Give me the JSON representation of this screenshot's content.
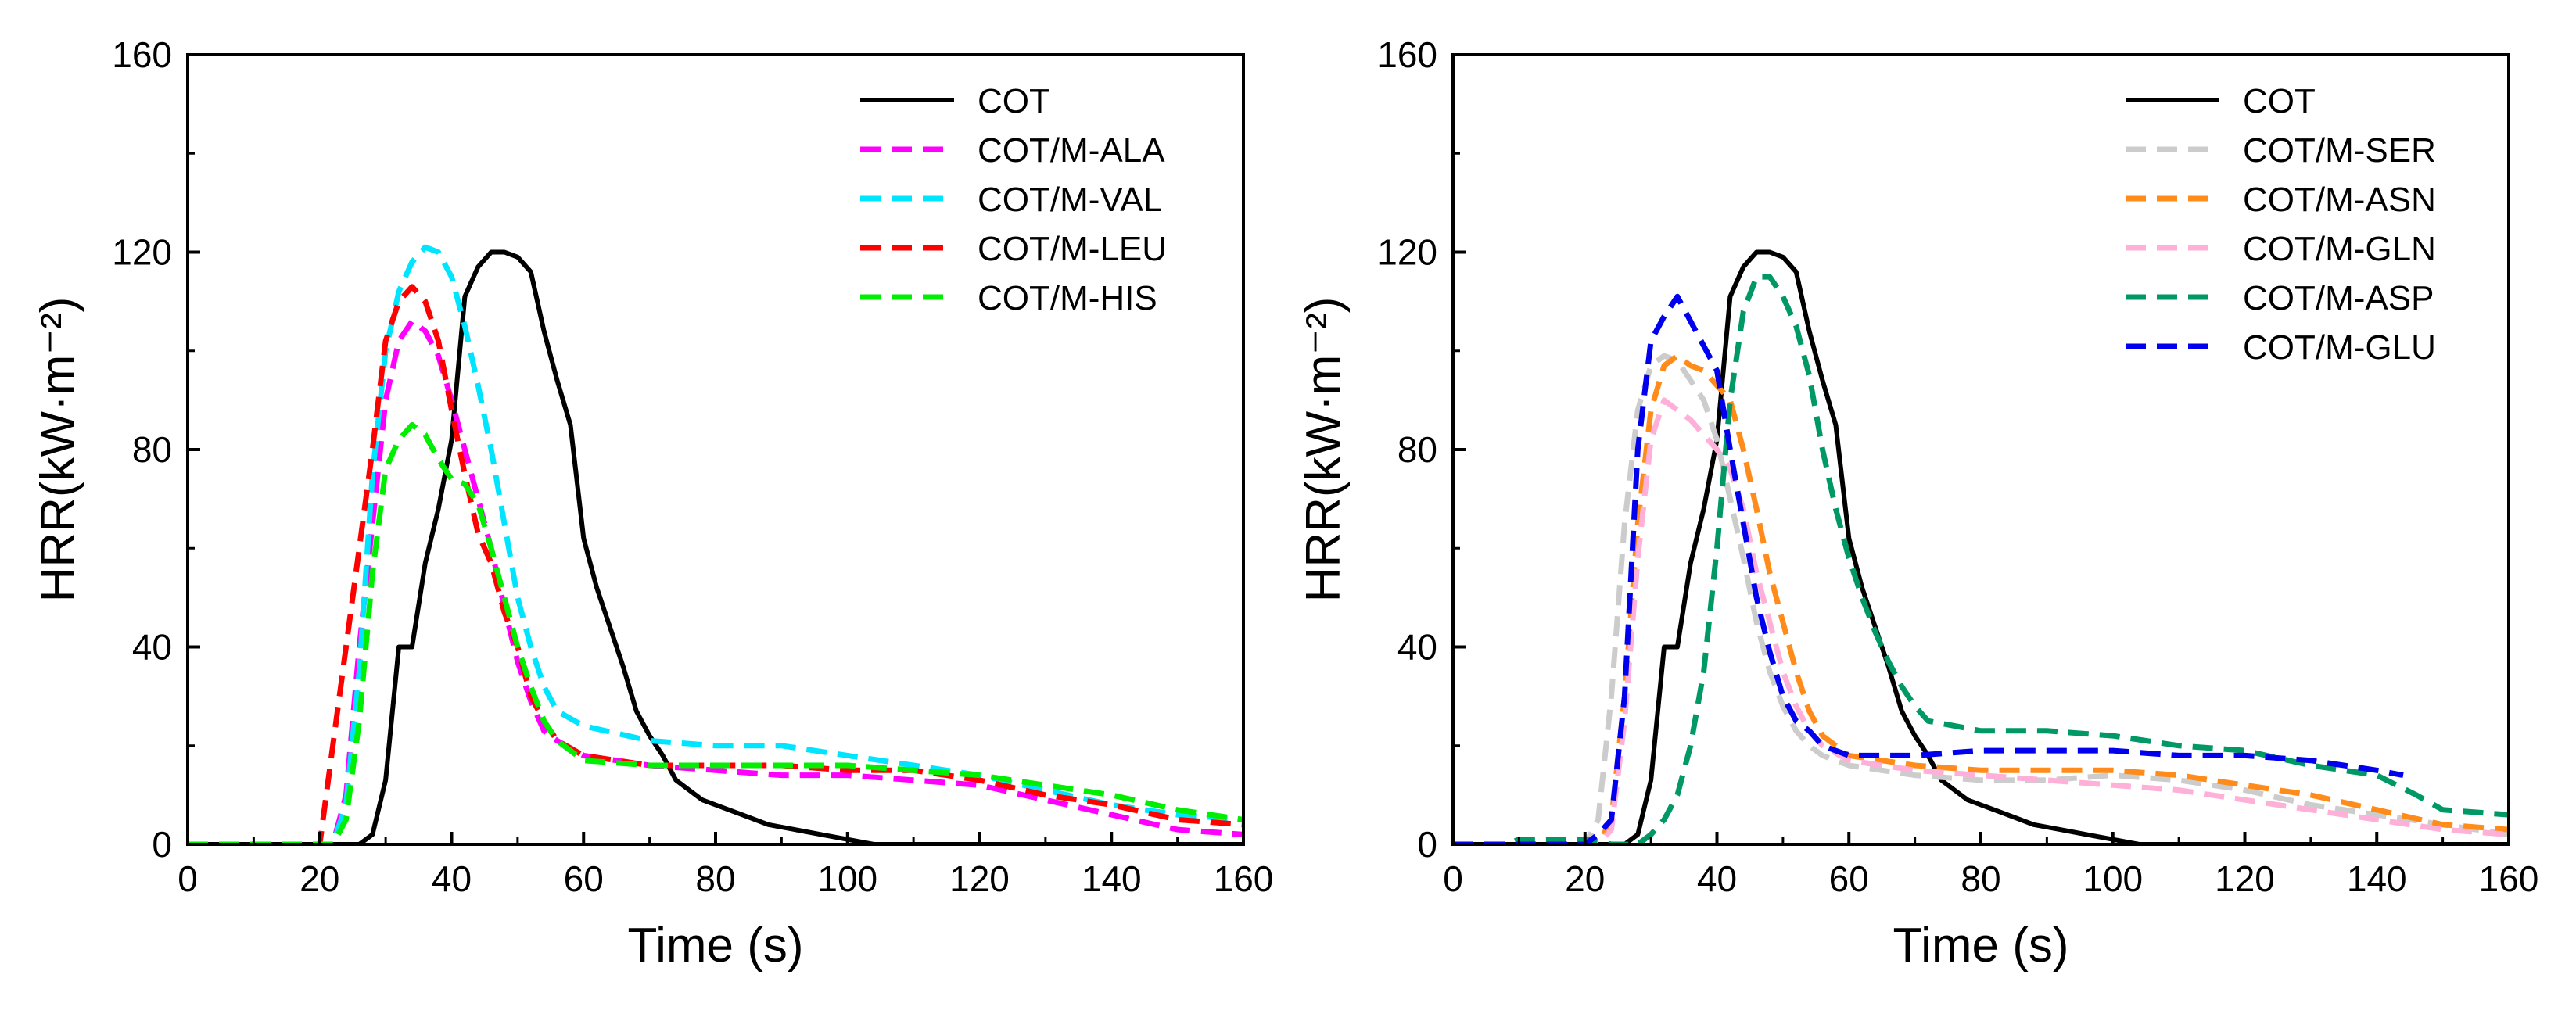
{
  "chart_data": [
    {
      "type": "line",
      "xlabel": "Time (s)",
      "ylabel": "HRR(kW·m⁻²)",
      "xlim": [
        0,
        160
      ],
      "ylim": [
        0,
        160
      ],
      "xticks": [
        "0",
        "20",
        "40",
        "60",
        "80",
        "100",
        "120",
        "140",
        "160"
      ],
      "yticks": [
        "0",
        "40",
        "80",
        "120",
        "160"
      ],
      "legend_position": "top-right",
      "series": [
        {
          "name": "COT",
          "color": "#000000",
          "dash": "solid",
          "x": [
            0,
            26,
            28,
            30,
            32,
            34,
            36,
            38,
            40,
            42,
            44,
            46,
            48,
            50,
            52,
            54,
            56,
            58,
            60,
            62,
            64,
            66,
            68,
            70,
            72,
            74,
            76,
            78,
            80,
            84,
            88,
            92,
            96,
            100,
            104,
            160
          ],
          "y": [
            0,
            0,
            2,
            13,
            40,
            40,
            57,
            68,
            82,
            111,
            117,
            120,
            120,
            119,
            116,
            104,
            94,
            85,
            62,
            52,
            44,
            36,
            27,
            22,
            18,
            13,
            11,
            9,
            8,
            6,
            4,
            3,
            2,
            1,
            0,
            0
          ]
        },
        {
          "name": "COT/M-ALA",
          "color": "#ff00ff",
          "dash": "dashed",
          "x": [
            0,
            22,
            24,
            26,
            28,
            30,
            32,
            34,
            36,
            38,
            40,
            42,
            44,
            46,
            48,
            50,
            52,
            54,
            56,
            60,
            70,
            80,
            90,
            100,
            110,
            120,
            130,
            140,
            150,
            160
          ],
          "y": [
            0,
            0,
            10,
            40,
            65,
            90,
            102,
            106,
            104,
            99,
            90,
            80,
            70,
            60,
            48,
            37,
            29,
            23,
            21,
            18,
            16,
            15,
            14,
            14,
            13,
            12,
            9,
            6,
            3,
            2
          ]
        },
        {
          "name": "COT/M-VAL",
          "color": "#00e5ff",
          "dash": "dashed",
          "x": [
            0,
            22,
            24,
            26,
            28,
            30,
            32,
            34,
            36,
            38,
            40,
            42,
            44,
            46,
            48,
            50,
            52,
            54,
            56,
            60,
            70,
            80,
            90,
            100,
            110,
            120,
            130,
            140,
            150,
            160
          ],
          "y": [
            0,
            0,
            8,
            35,
            75,
            100,
            112,
            118,
            121,
            120,
            115,
            105,
            93,
            80,
            65,
            50,
            40,
            32,
            27,
            24,
            21,
            20,
            20,
            18,
            16,
            14,
            11,
            8,
            6,
            5
          ]
        },
        {
          "name": "COT/M-LEU",
          "color": "#ff0000",
          "dash": "dashed",
          "x": [
            0,
            20,
            22,
            24,
            26,
            28,
            30,
            32,
            34,
            36,
            38,
            40,
            42,
            44,
            46,
            48,
            50,
            52,
            54,
            56,
            60,
            70,
            80,
            90,
            100,
            110,
            120,
            130,
            140,
            150,
            160
          ],
          "y": [
            0,
            0,
            20,
            40,
            60,
            80,
            102,
            110,
            113,
            110,
            102,
            88,
            75,
            63,
            57,
            47,
            40,
            30,
            25,
            21,
            18,
            16,
            16,
            16,
            15,
            15,
            13,
            10,
            8,
            5,
            4
          ]
        },
        {
          "name": "COT/M-HIS",
          "color": "#00ee00",
          "dash": "dashed",
          "x": [
            0,
            22,
            24,
            26,
            28,
            30,
            32,
            34,
            36,
            38,
            40,
            42,
            44,
            46,
            48,
            50,
            52,
            54,
            56,
            60,
            70,
            80,
            90,
            100,
            110,
            120,
            130,
            140,
            150,
            160
          ],
          "y": [
            0,
            0,
            5,
            25,
            55,
            76,
            82,
            85,
            83,
            78,
            74,
            73,
            69,
            60,
            50,
            40,
            32,
            25,
            21,
            17,
            16,
            16,
            16,
            16,
            15,
            14,
            12,
            10,
            7,
            5
          ]
        }
      ]
    },
    {
      "type": "line",
      "xlabel": "Time (s)",
      "ylabel": "HRR(kW·m⁻²)",
      "xlim": [
        0,
        160
      ],
      "ylim": [
        0,
        160
      ],
      "xticks": [
        "0",
        "20",
        "40",
        "60",
        "80",
        "100",
        "120",
        "140",
        "160"
      ],
      "yticks": [
        "0",
        "40",
        "80",
        "120",
        "160"
      ],
      "legend_position": "top-right",
      "series": [
        {
          "name": "COT",
          "color": "#000000",
          "dash": "solid",
          "x": [
            0,
            26,
            28,
            30,
            32,
            34,
            36,
            38,
            40,
            42,
            44,
            46,
            48,
            50,
            52,
            54,
            56,
            58,
            60,
            62,
            64,
            66,
            68,
            70,
            72,
            74,
            76,
            78,
            80,
            84,
            88,
            92,
            96,
            100,
            104,
            160
          ],
          "y": [
            0,
            0,
            2,
            13,
            40,
            40,
            57,
            68,
            82,
            111,
            117,
            120,
            120,
            119,
            116,
            104,
            94,
            85,
            62,
            52,
            44,
            36,
            27,
            22,
            18,
            13,
            11,
            9,
            8,
            6,
            4,
            3,
            2,
            1,
            0,
            0
          ]
        },
        {
          "name": "COT/M-SER",
          "color": "#cccccc",
          "dash": "dashed",
          "x": [
            0,
            20,
            22,
            24,
            26,
            28,
            30,
            32,
            34,
            36,
            38,
            40,
            42,
            44,
            46,
            48,
            50,
            52,
            54,
            56,
            60,
            70,
            80,
            90,
            100,
            110,
            120,
            130,
            140,
            150,
            160
          ],
          "y": [
            0,
            0,
            5,
            30,
            65,
            88,
            97,
            99,
            98,
            94,
            90,
            82,
            70,
            58,
            45,
            35,
            28,
            23,
            20,
            18,
            16,
            14,
            13,
            13,
            14,
            13,
            11,
            8,
            6,
            4,
            2
          ]
        },
        {
          "name": "COT/M-ASN",
          "color": "#ff8c1a",
          "dash": "dashed",
          "x": [
            0,
            22,
            24,
            26,
            28,
            30,
            32,
            34,
            36,
            38,
            40,
            42,
            44,
            46,
            48,
            50,
            52,
            54,
            56,
            60,
            70,
            80,
            90,
            100,
            110,
            120,
            130,
            140,
            150,
            160
          ],
          "y": [
            0,
            0,
            5,
            30,
            65,
            88,
            97,
            99,
            97,
            96,
            93,
            90,
            80,
            68,
            55,
            45,
            35,
            27,
            22,
            18,
            16,
            15,
            15,
            15,
            14,
            12,
            10,
            7,
            4,
            3
          ]
        },
        {
          "name": "COT/M-GLN",
          "color": "#ffb0d8",
          "dash": "dashed",
          "x": [
            0,
            22,
            24,
            26,
            28,
            30,
            32,
            34,
            36,
            38,
            40,
            42,
            44,
            46,
            48,
            50,
            52,
            54,
            56,
            60,
            70,
            80,
            90,
            100,
            110,
            120,
            130,
            140,
            150,
            160
          ],
          "y": [
            0,
            0,
            3,
            25,
            58,
            82,
            90,
            88,
            86,
            83,
            80,
            76,
            68,
            55,
            45,
            35,
            28,
            23,
            20,
            17,
            15,
            14,
            13,
            12,
            11,
            9,
            7,
            5,
            3,
            2
          ]
        },
        {
          "name": "COT/M-ASP",
          "color": "#009966",
          "dash": "dashed",
          "x": [
            0,
            8,
            10,
            20,
            24,
            28,
            30,
            32,
            34,
            36,
            38,
            40,
            42,
            44,
            46,
            48,
            50,
            52,
            54,
            56,
            58,
            60,
            62,
            64,
            66,
            68,
            70,
            72,
            80,
            90,
            100,
            110,
            120,
            130,
            140,
            146,
            150,
            160
          ],
          "y": [
            0,
            0,
            1,
            1,
            0,
            0,
            2,
            5,
            10,
            20,
            35,
            60,
            90,
            108,
            115,
            115,
            111,
            105,
            95,
            80,
            68,
            58,
            50,
            43,
            37,
            32,
            28,
            25,
            23,
            23,
            22,
            20,
            19,
            16,
            14,
            10,
            7,
            6
          ]
        },
        {
          "name": "COT/M-GLU",
          "color": "#0000ee",
          "dash": "dashed",
          "x": [
            0,
            20,
            22,
            24,
            26,
            28,
            30,
            32,
            34,
            36,
            38,
            40,
            42,
            44,
            46,
            48,
            50,
            52,
            54,
            56,
            60,
            70,
            80,
            90,
            100,
            110,
            120,
            130,
            140,
            144
          ],
          "y": [
            0,
            0,
            2,
            5,
            30,
            80,
            102,
            107,
            111,
            106,
            101,
            96,
            80,
            65,
            50,
            39,
            30,
            25,
            23,
            20,
            18,
            18,
            19,
            19,
            19,
            18,
            18,
            17,
            15,
            14
          ]
        }
      ]
    }
  ]
}
